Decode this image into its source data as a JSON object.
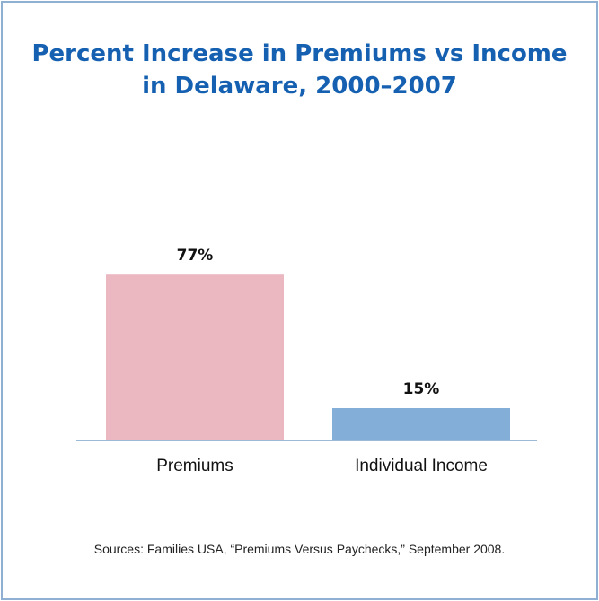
{
  "chart_data": {
    "type": "bar",
    "title_lines": [
      "Percent Increase in Premiums vs Income",
      "in Delaware, 2000–2007"
    ],
    "categories": [
      "Premiums",
      "Individual Income"
    ],
    "values": [
      77,
      15
    ],
    "value_labels": [
      "77%",
      "15%"
    ],
    "colors": [
      "#ebb8c1",
      "#82aed7"
    ],
    "axis_color": "#7aa3cc",
    "ylim": [
      0,
      100
    ],
    "grid": false,
    "legend": "none"
  },
  "source": "Sources: Families USA, “Premiums Versus Paychecks,” September 2008."
}
